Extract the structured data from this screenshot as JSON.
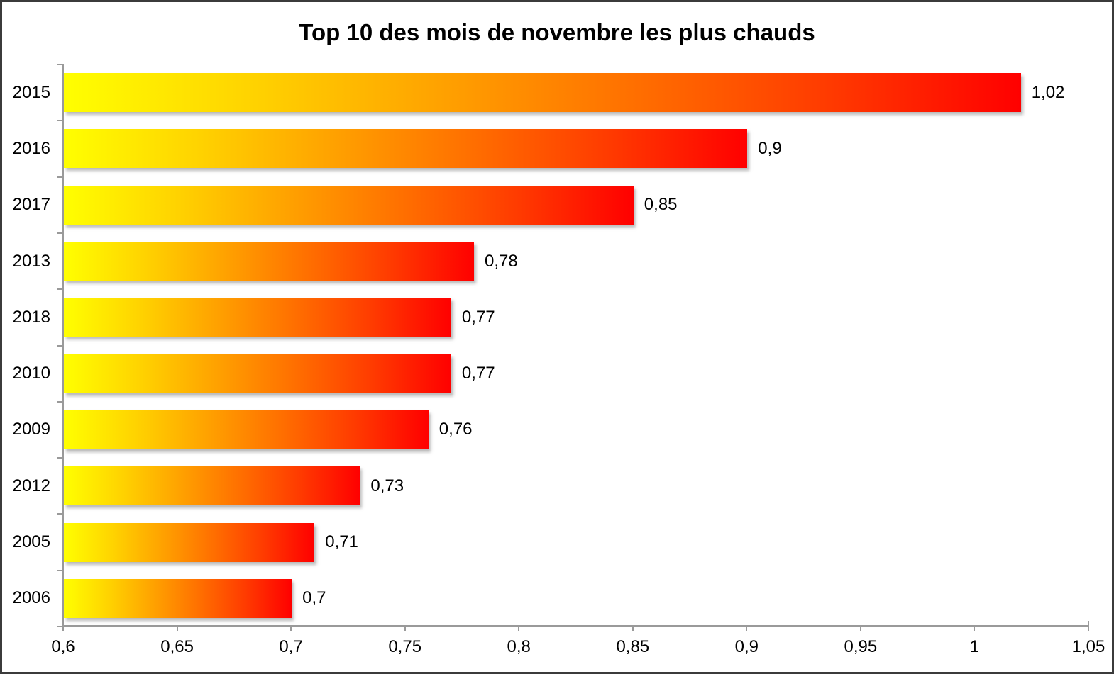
{
  "chart_data": {
    "type": "bar",
    "orientation": "horizontal",
    "title": "Top 10 des mois de novembre les plus chauds",
    "categories": [
      "2015",
      "2016",
      "2017",
      "2013",
      "2018",
      "2010",
      "2009",
      "2012",
      "2005",
      "2006"
    ],
    "values": [
      1.02,
      0.9,
      0.85,
      0.78,
      0.77,
      0.77,
      0.76,
      0.73,
      0.71,
      0.7
    ],
    "value_labels": [
      "1,02",
      "0,9",
      "0,85",
      "0,78",
      "0,77",
      "0,77",
      "0,76",
      "0,73",
      "0,71",
      "0,7"
    ],
    "xlabel": "",
    "ylabel": "",
    "xlim": [
      0.6,
      1.05
    ],
    "x_ticks": [
      0.6,
      0.65,
      0.7,
      0.75,
      0.8,
      0.85,
      0.9,
      0.95,
      1,
      1.05
    ],
    "x_tick_labels": [
      "0,6",
      "0,65",
      "0,7",
      "0,75",
      "0,8",
      "0,85",
      "0,9",
      "0,95",
      "1",
      "1,05"
    ],
    "grid": false,
    "legend": false,
    "bar_gradient": [
      "#ffff00",
      "#ffd200",
      "#ffa000",
      "#ff6e00",
      "#ff3a00",
      "#ff0000"
    ],
    "axis_color": "#9a9a9a",
    "text_color": "#000000",
    "background_color": "#ffffff",
    "frame_border_color": "#3b3b3b"
  }
}
